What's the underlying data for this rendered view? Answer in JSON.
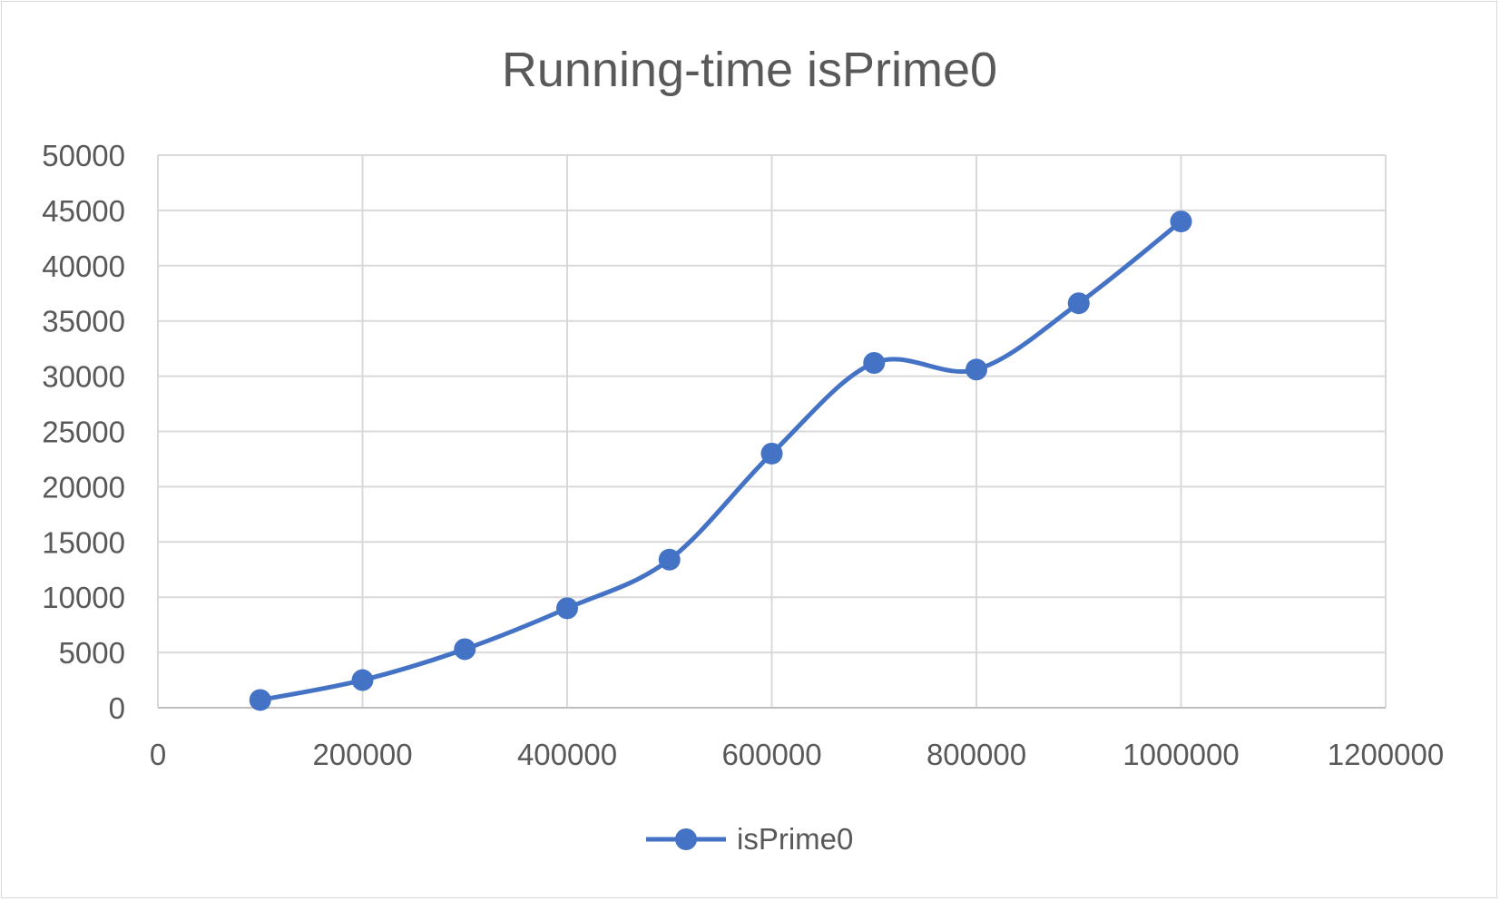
{
  "chart_data": {
    "type": "line",
    "title": "Running-time isPrime0",
    "xlabel": "",
    "ylabel": "",
    "xlim": [
      0,
      1200000
    ],
    "ylim": [
      0,
      50000
    ],
    "x_ticks": [
      0,
      200000,
      400000,
      600000,
      800000,
      1000000,
      1200000
    ],
    "y_ticks": [
      0,
      5000,
      10000,
      15000,
      20000,
      25000,
      30000,
      35000,
      40000,
      45000,
      50000
    ],
    "grid": true,
    "smooth": true,
    "legend_position": "bottom",
    "series": [
      {
        "name": "isPrime0",
        "color": "#4472c4",
        "marker": "circle",
        "x": [
          100000,
          200000,
          300000,
          400000,
          500000,
          600000,
          700000,
          800000,
          900000,
          1000000
        ],
        "y": [
          700,
          2500,
          5300,
          9000,
          13400,
          23000,
          31200,
          30600,
          36600,
          44000
        ]
      }
    ]
  }
}
